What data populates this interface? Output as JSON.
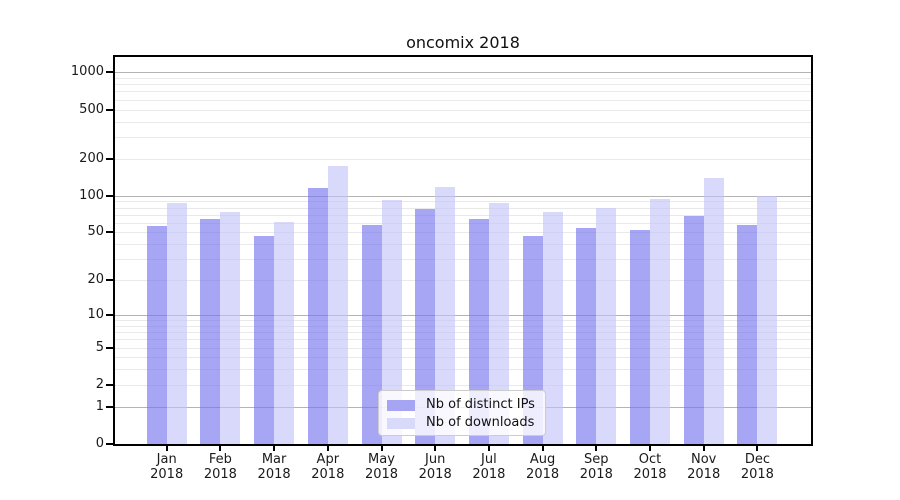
{
  "chart_data": {
    "type": "bar",
    "title": "oncomix 2018",
    "x_categories": [
      "Jan",
      "Feb",
      "Mar",
      "Apr",
      "May",
      "Jun",
      "Jul",
      "Aug",
      "Sep",
      "Oct",
      "Nov",
      "Dec"
    ],
    "x_year": "2018",
    "series": [
      {
        "name": "Nb of distinct IPs",
        "fill": "rgba(115,115,240,0.64)",
        "solid": "#a5a5f3",
        "values": [
          56,
          64,
          47,
          116,
          58,
          78,
          64,
          47,
          54,
          52,
          68,
          58
        ]
      },
      {
        "name": "Nb of downloads",
        "fill": "rgba(193,193,249,0.62)",
        "solid": "#d9d9fa",
        "values": [
          88,
          74,
          61,
          174,
          92,
          117,
          88,
          73,
          80,
          94,
          140,
          100
        ]
      }
    ],
    "y_scale": "log1p",
    "y_ticks": [
      0,
      1,
      2,
      5,
      10,
      20,
      50,
      100,
      200,
      500,
      1000
    ],
    "y_major_gridlines": [
      1,
      10,
      100,
      1000
    ],
    "ylim": [
      0,
      1330
    ],
    "grid": true,
    "legend_position": "lower-center",
    "grid_major_color": "#b4b4b4",
    "grid_minor_color": "#e9e9e9",
    "spine_color": "#000000",
    "text_color": "#1a1a1a"
  }
}
